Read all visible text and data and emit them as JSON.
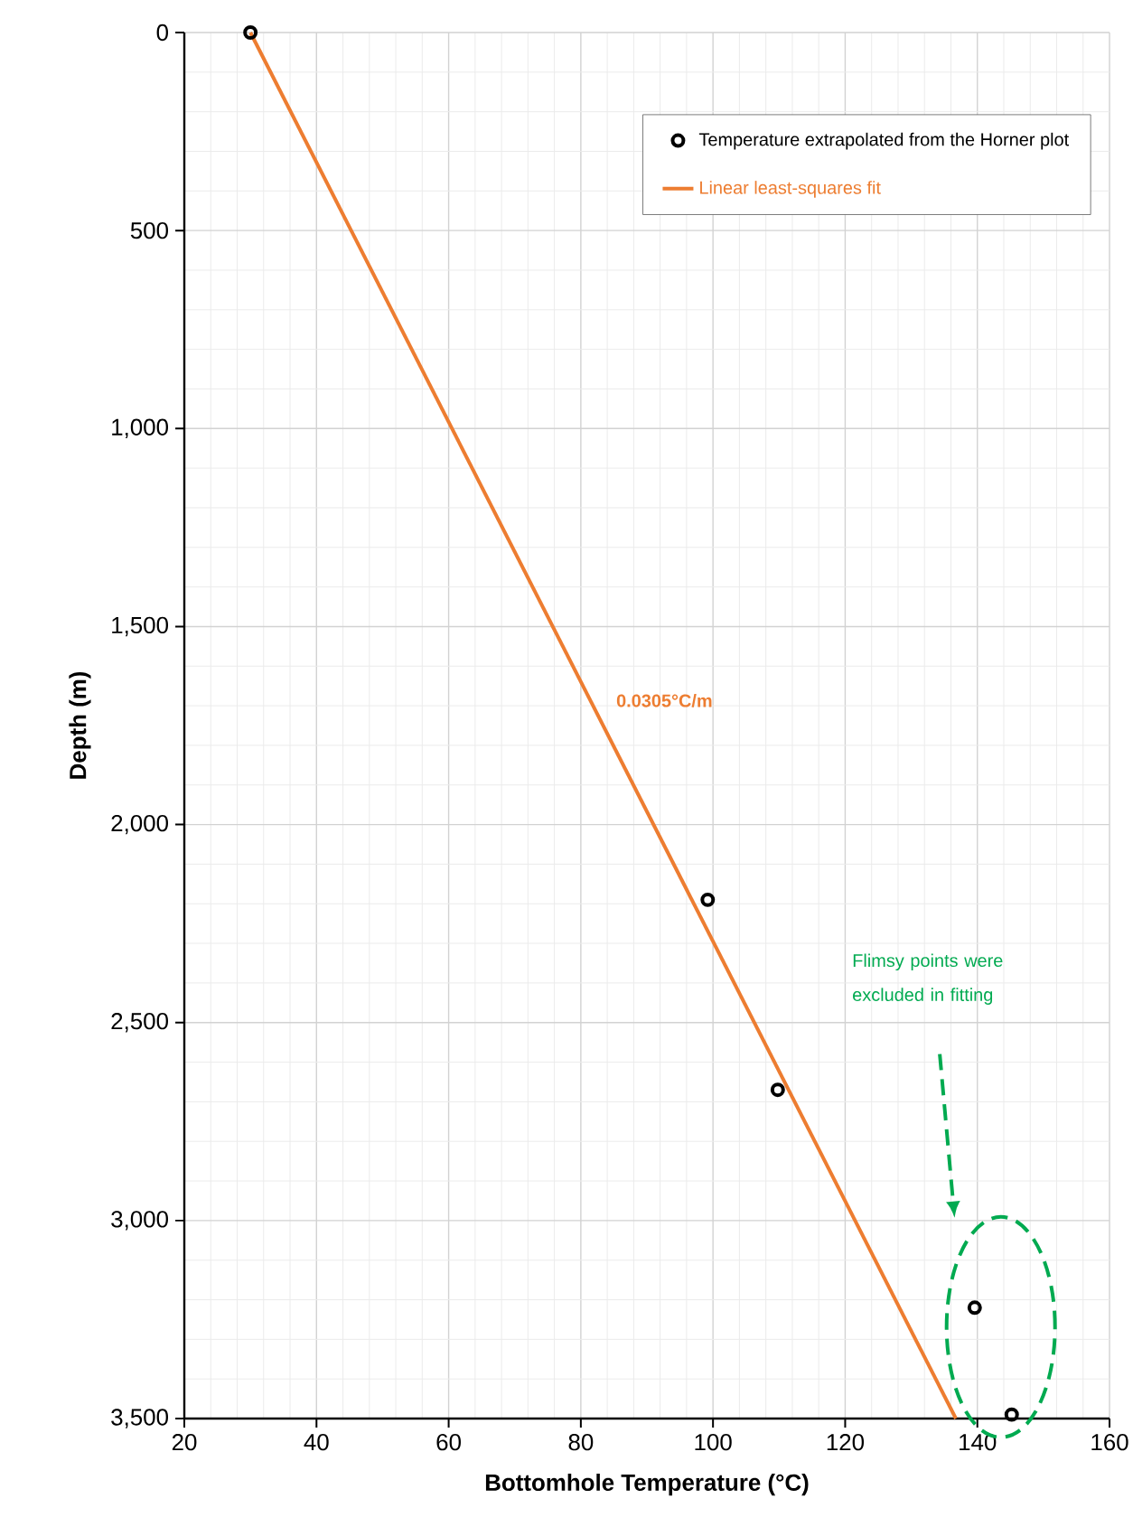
{
  "chart_data": {
    "type": "scatter",
    "xlabel": "Bottomhole Temperature (°C)",
    "ylabel": "Depth (m)",
    "series": [
      {
        "name": "Temperature extrapolated from the Horner plot",
        "color": "#000000",
        "marker": "circle",
        "x": [
          30,
          99.2,
          109.8,
          139.6,
          145.2
        ],
        "values": [
          0,
          2190,
          2670,
          3220,
          3490
        ]
      },
      {
        "name": "Linear least-squares fit",
        "type": "line",
        "color": "#ed7d31",
        "marker": "none",
        "line_style": "solid",
        "x": [
          30,
          136.75
        ],
        "values": [
          0,
          3500
        ]
      }
    ],
    "xlim": [
      20,
      160
    ],
    "xticks": [
      20,
      40,
      60,
      80,
      100,
      120,
      140,
      160
    ],
    "ylim": [
      3500,
      0
    ],
    "yticks": [
      0,
      500,
      {
        "value": 1000,
        "label": "1,000"
      },
      {
        "value": 1500,
        "label": "1,500"
      },
      {
        "value": 2000,
        "label": "2,000"
      },
      {
        "value": 2500,
        "label": "2,500"
      },
      {
        "value": 3000,
        "label": "3,000"
      },
      {
        "value": 3500,
        "label": "3,500"
      }
    ],
    "grid": true,
    "legend": "top right",
    "annotations": [
      "0.0305°C/m",
      "Flimsy points were excluded in fitting"
    ]
  }
}
